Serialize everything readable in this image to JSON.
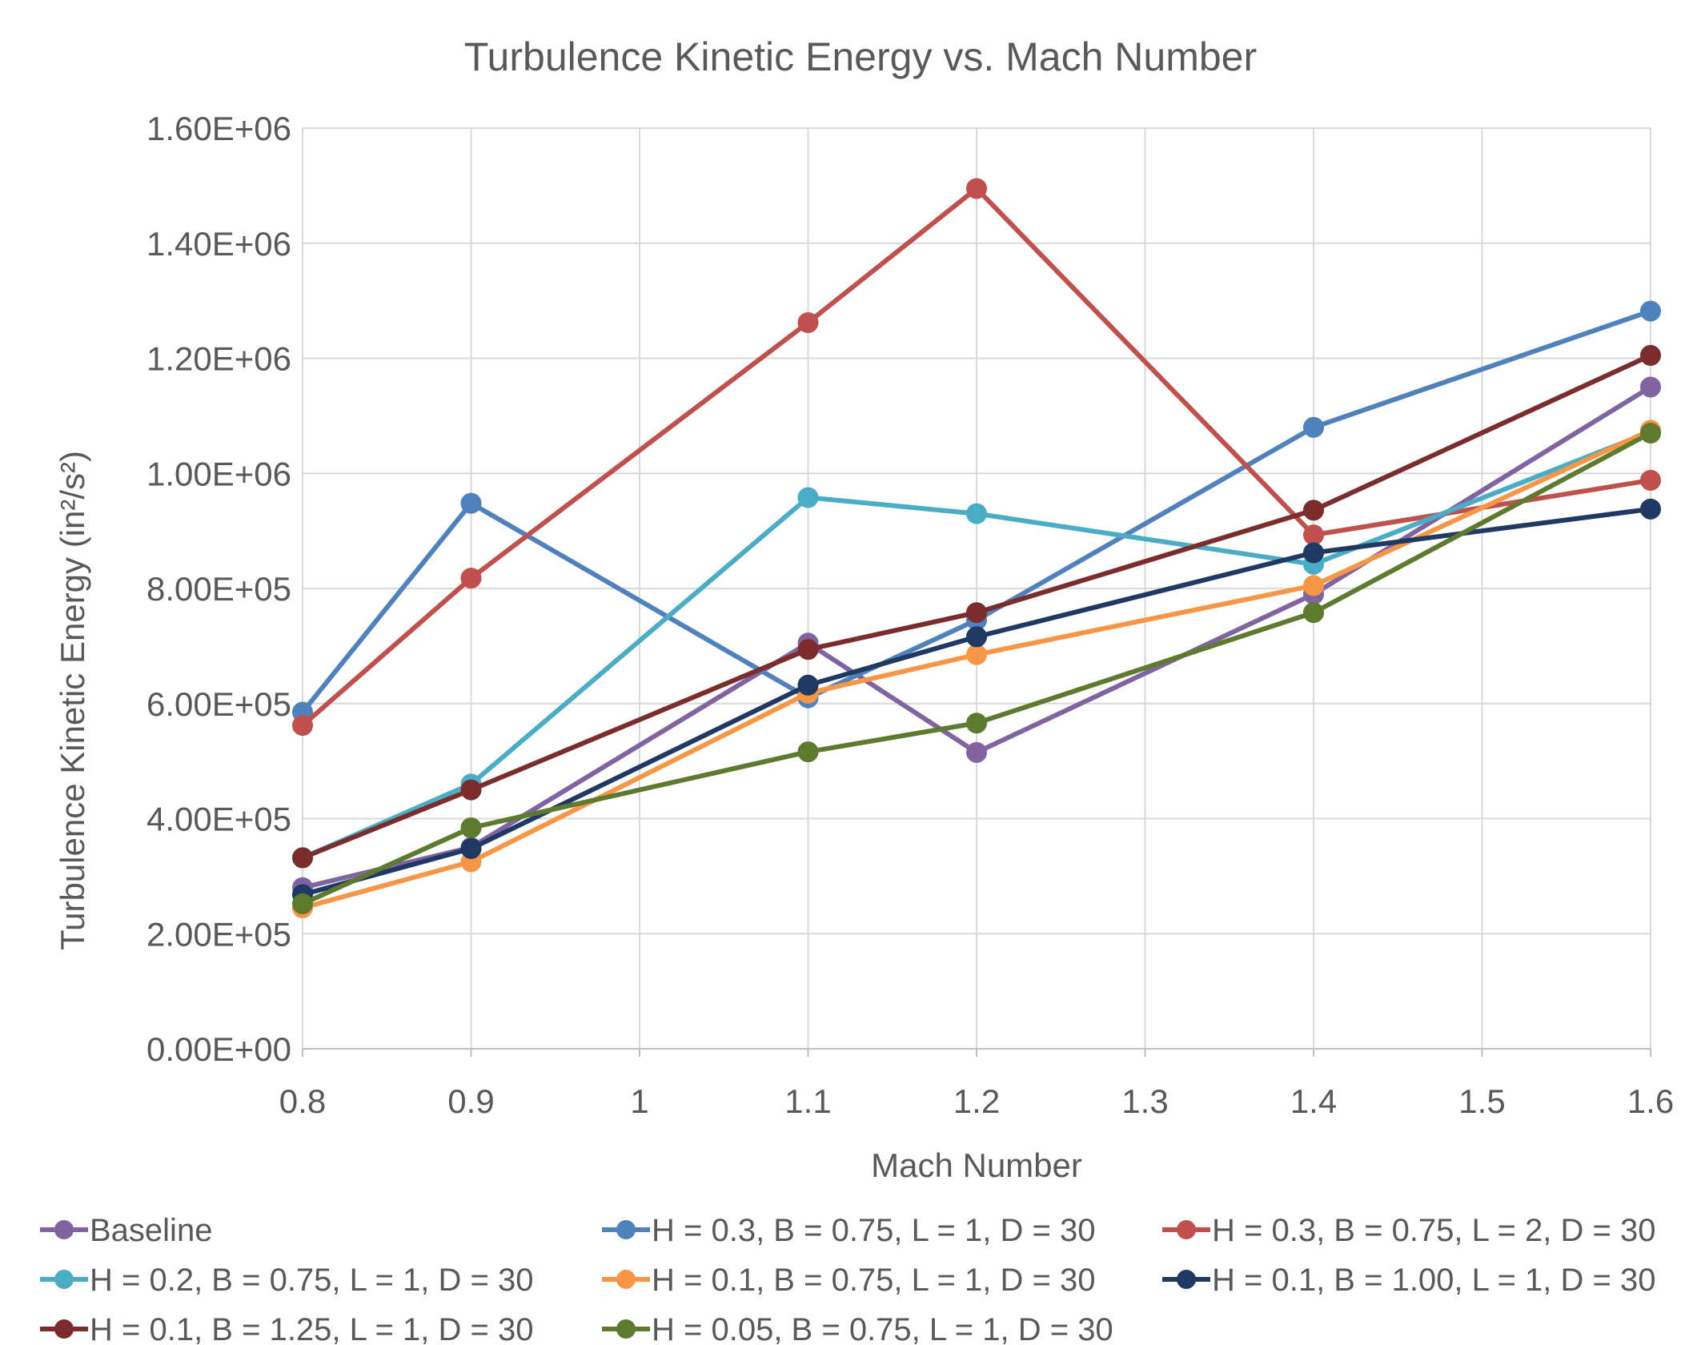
{
  "chart_data": {
    "type": "line",
    "title": "Turbulence Kinetic Energy vs. Mach Number",
    "xlabel": "Mach Number",
    "ylabel": "Turbulence Kinetic Energy (in²/s²)",
    "xlim": [
      0.8,
      1.6
    ],
    "ylim": [
      0,
      1600000
    ],
    "x_ticks": [
      "0.8",
      "0.9",
      "1",
      "1.1",
      "1.2",
      "1.3",
      "1.4",
      "1.5",
      "1.6"
    ],
    "y_ticks": [
      "0.00E+00",
      "2.00E+05",
      "4.00E+05",
      "6.00E+05",
      "8.00E+05",
      "1.00E+06",
      "1.20E+06",
      "1.40E+06",
      "1.60E+06"
    ],
    "grid": true,
    "legend_position": "bottom",
    "x": [
      0.8,
      0.9,
      1.1,
      1.2,
      1.4,
      1.6
    ],
    "series": [
      {
        "name": "Baseline",
        "color": "#8064A2",
        "values": [
          280000,
          350000,
          705000,
          515000,
          790000,
          1150000
        ]
      },
      {
        "name": "H = 0.3, B = 0.75, L = 1, D = 30",
        "color": "#4F81BD",
        "values": [
          585000,
          948000,
          610000,
          745000,
          1080000,
          1282000
        ]
      },
      {
        "name": "H = 0.3, B = 0.75, L = 2, D = 30",
        "color": "#C0504D",
        "values": [
          562000,
          818000,
          1262000,
          1495000,
          893000,
          988000
        ]
      },
      {
        "name": "H = 0.2, B = 0.75, L = 1, D = 30",
        "color": "#4BACC6",
        "values": [
          332000,
          460000,
          958000,
          930000,
          842000,
          1072000
        ]
      },
      {
        "name": "H = 0.1, B = 0.75, L = 1, D = 30",
        "color": "#F79646",
        "values": [
          245000,
          325000,
          618000,
          685000,
          805000,
          1075000
        ]
      },
      {
        "name": "H = 0.1, B = 1.00, L = 1, D = 30",
        "color": "#1F3864",
        "values": [
          268000,
          348000,
          632000,
          716000,
          862000,
          938000
        ]
      },
      {
        "name": "H = 0.1, B = 1.25, L = 1, D = 30",
        "color": "#7B2C2C",
        "values": [
          332000,
          450000,
          694000,
          758000,
          936000,
          1205000
        ]
      },
      {
        "name": "H = 0.05, B = 0.75, L = 1, D = 30",
        "color": "#5E7A2E",
        "values": [
          252000,
          384000,
          516000,
          566000,
          758000,
          1070000
        ]
      }
    ]
  }
}
